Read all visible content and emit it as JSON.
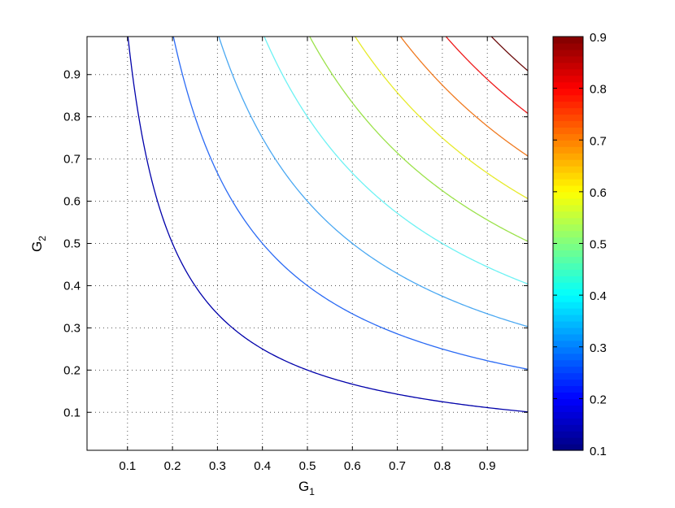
{
  "chart_data": {
    "type": "contour",
    "function": "z = G1 * G2",
    "xlabel": "G",
    "xlabel_sub": "1",
    "ylabel": "G",
    "ylabel_sub": "2",
    "xlim": [
      0.01,
      0.99
    ],
    "ylim": [
      0.01,
      0.99
    ],
    "xticks": [
      "0.1",
      "0.2",
      "0.3",
      "0.4",
      "0.5",
      "0.6",
      "0.7",
      "0.8",
      "0.9"
    ],
    "yticks": [
      "0.1",
      "0.2",
      "0.3",
      "0.4",
      "0.5",
      "0.6",
      "0.7",
      "0.8",
      "0.9"
    ],
    "grid": true,
    "grid_style": "dotted",
    "colormap": "jet",
    "levels": [
      0.1,
      0.2,
      0.3,
      0.4,
      0.5,
      0.6,
      0.7,
      0.8,
      0.9
    ],
    "level_colors": [
      "#0000AA",
      "#2A6AF4",
      "#4AA8F2",
      "#6EF2F4",
      "#9BE24A",
      "#E6EA2A",
      "#F07A20",
      "#EE1A1A",
      "#6A0A0A"
    ],
    "colorbar": {
      "range": [
        0.1,
        0.9
      ],
      "ticks": [
        "0.1",
        "0.2",
        "0.3",
        "0.4",
        "0.5",
        "0.6",
        "0.7",
        "0.8",
        "0.9"
      ],
      "placement": "right"
    }
  }
}
